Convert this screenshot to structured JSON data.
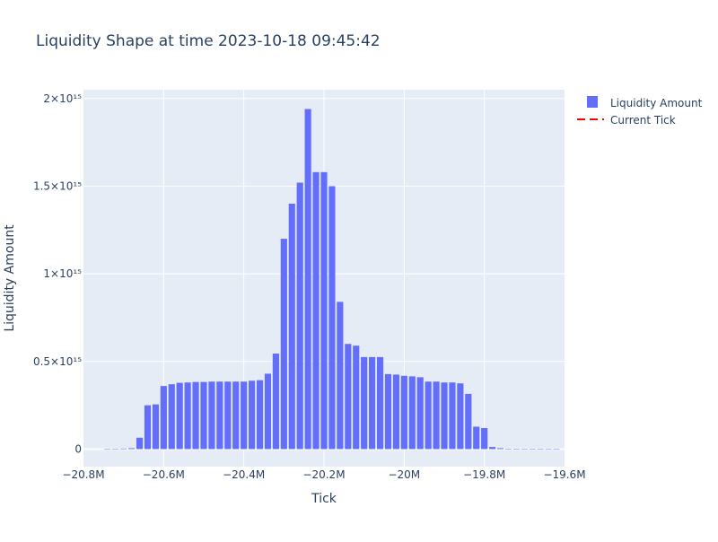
{
  "chart_data": {
    "type": "bar",
    "title": "Liquidity Shape at time 2023-10-18 09:45:42",
    "xlabel": "Tick",
    "ylabel": "Liquidity Amount",
    "xlim": [
      -20800000,
      -19600000
    ],
    "ylim": [
      -100000000000000,
      2050000000000000
    ],
    "x_ticks": [
      {
        "value": -20800000,
        "label": "−20.8M"
      },
      {
        "value": -20600000,
        "label": "−20.6M"
      },
      {
        "value": -20400000,
        "label": "−20.4M"
      },
      {
        "value": -20200000,
        "label": "−20.2M"
      },
      {
        "value": -20000000,
        "label": "−20M"
      },
      {
        "value": -19800000,
        "label": "−19.8M"
      },
      {
        "value": -19600000,
        "label": "−19.6M"
      }
    ],
    "y_ticks": [
      {
        "value": 0,
        "label": "0"
      },
      {
        "value": 500000000000000,
        "label": "0.5×10¹⁵"
      },
      {
        "value": 1000000000000000,
        "label": "1×10¹⁵"
      },
      {
        "value": 1500000000000000,
        "label": "1.5×10¹⁵"
      },
      {
        "value": 2000000000000000,
        "label": "2×10¹⁵"
      }
    ],
    "grid": true,
    "legend_position": "top-right",
    "series": [
      {
        "name": "Liquidity Amount",
        "color": "#636efa",
        "bar_width": 16000,
        "x": [
          -20740000,
          -20720000,
          -20700000,
          -20680000,
          -20660000,
          -20640000,
          -20620000,
          -20600000,
          -20580000,
          -20560000,
          -20540000,
          -20520000,
          -20500000,
          -20480000,
          -20460000,
          -20440000,
          -20420000,
          -20400000,
          -20380000,
          -20360000,
          -20340000,
          -20320000,
          -20300000,
          -20280000,
          -20260000,
          -20240000,
          -20220000,
          -20200000,
          -20180000,
          -20160000,
          -20140000,
          -20120000,
          -20100000,
          -20080000,
          -20060000,
          -20040000,
          -20020000,
          -20000000,
          -19980000,
          -19960000,
          -19940000,
          -19920000,
          -19900000,
          -19880000,
          -19860000,
          -19840000,
          -19820000,
          -19800000,
          -19780000,
          -19760000,
          -19740000,
          -19720000,
          -19700000,
          -19680000,
          -19660000,
          -19640000,
          -19620000
        ],
        "values": [
          2000000000000,
          2000000000000,
          3000000000000,
          5000000000000,
          65000000000000,
          250000000000000,
          255000000000000,
          360000000000000,
          370000000000000,
          378000000000000,
          380000000000000,
          383000000000000,
          383000000000000,
          385000000000000,
          385000000000000,
          385000000000000,
          385000000000000,
          385000000000000,
          390000000000000,
          393000000000000,
          430000000000000,
          545000000000000,
          1200000000000000,
          1400000000000000,
          1520000000000000,
          1940000000000000,
          1580000000000000,
          1580000000000000,
          1500000000000000,
          840000000000000,
          600000000000000,
          590000000000000,
          525000000000000,
          525000000000000,
          525000000000000,
          428000000000000,
          425000000000000,
          418000000000000,
          415000000000000,
          410000000000000,
          385000000000000,
          385000000000000,
          380000000000000,
          380000000000000,
          375000000000000,
          315000000000000,
          128000000000000,
          120000000000000,
          12000000000000,
          5000000000000,
          2000000000000,
          1000000000000,
          1000000000000,
          1000000000000,
          1000000000000,
          1000000000000,
          1000000000000
        ]
      },
      {
        "name": "Current Tick",
        "color": "#ff0000",
        "line_style": "dash"
      }
    ]
  }
}
